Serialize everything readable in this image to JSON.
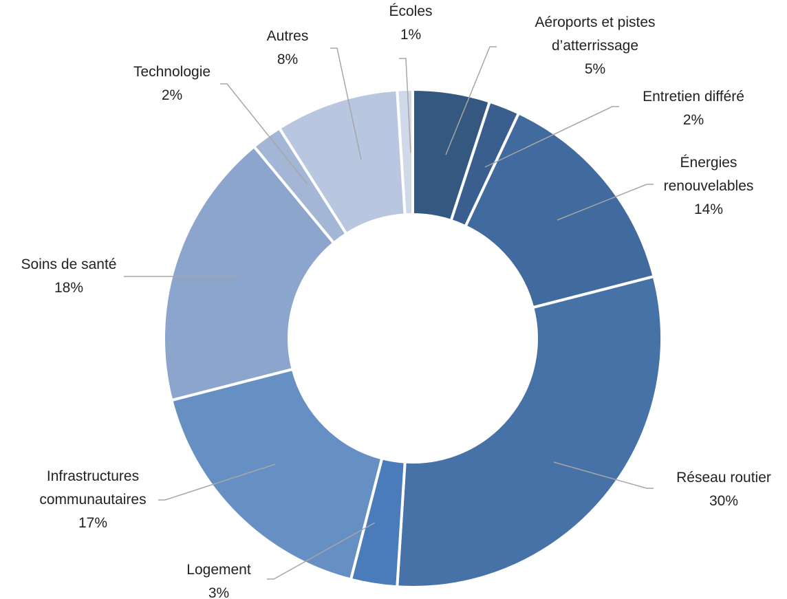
{
  "chart_data": {
    "type": "donut",
    "categories": [
      "Aéroports et pistes d’atterrissage",
      "Entretien différé",
      "Énergies renouvelables",
      "Réseau routier",
      "Logement",
      "Infrastructures communautaires",
      "Soins de santé",
      "Technologie",
      "Autres",
      "Écoles"
    ],
    "values": [
      5,
      2,
      14,
      30,
      3,
      17,
      18,
      2,
      8,
      1
    ],
    "value_labels": [
      "5%",
      "2%",
      "14%",
      "30%",
      "3%",
      "17%",
      "18%",
      "2%",
      "8%",
      "1%"
    ],
    "colors": [
      "#34587f",
      "#3a5f8f",
      "#416a9e",
      "#4672a8",
      "#4a7cbb",
      "#6690c4",
      "#8ca5cc",
      "#a3b6d6",
      "#b9c6df",
      "#d0d9ea"
    ]
  }
}
